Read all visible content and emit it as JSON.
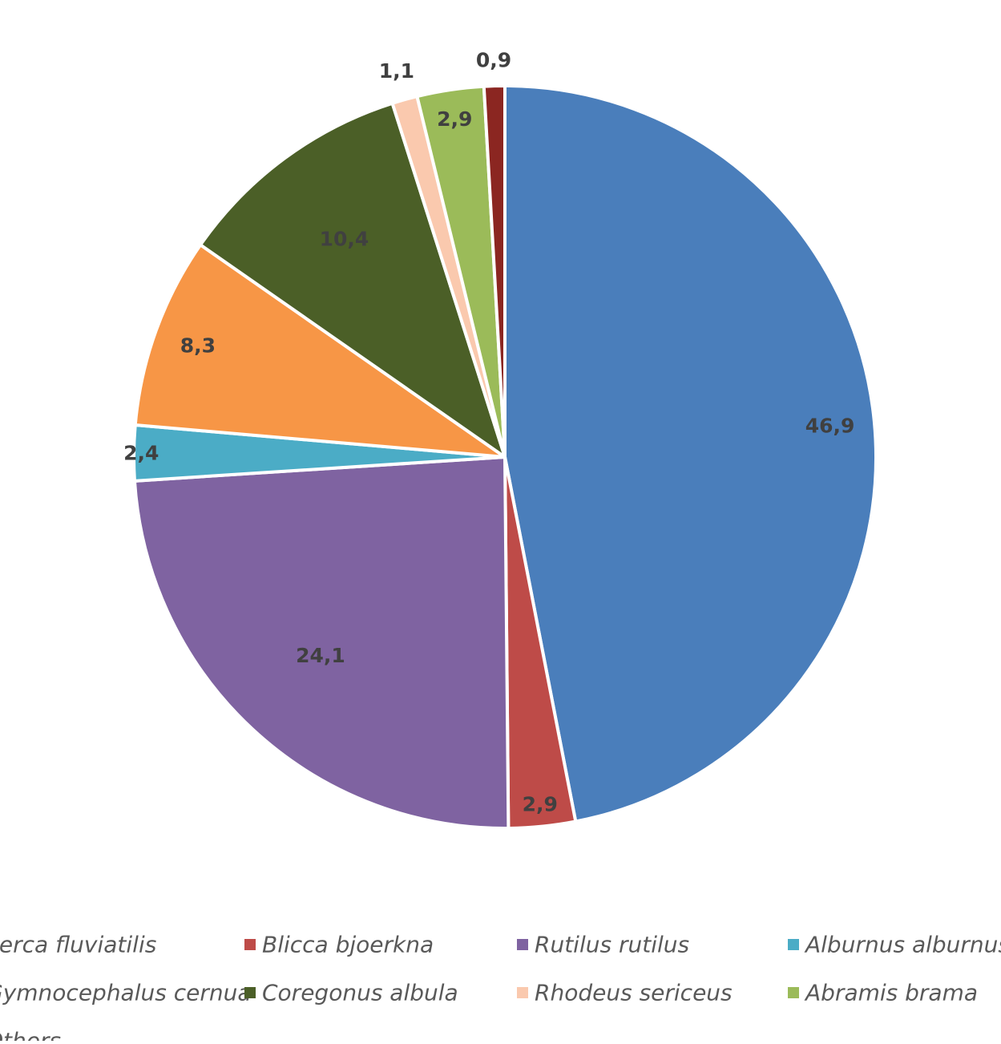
{
  "chart_data": {
    "type": "pie",
    "title": "",
    "series": [
      {
        "name": "Perca fluviatilis",
        "value": 46.9,
        "label": "46,9",
        "color": "#4A7EBB"
      },
      {
        "name": "Blicca bjoerkna",
        "value": 2.9,
        "label": "2,9",
        "color": "#BE4B48"
      },
      {
        "name": "Rutilus rutilus",
        "value": 24.1,
        "label": "24,1",
        "color": "#7F63A1"
      },
      {
        "name": "Alburnus alburnus",
        "value": 2.4,
        "label": "2,4",
        "color": "#4BACC6"
      },
      {
        "name": "Gymnocephalus cernua",
        "value": 8.3,
        "label": "8,3",
        "color": "#F79646"
      },
      {
        "name": "Coregonus albula",
        "value": 10.4,
        "label": "10,4",
        "color": "#4B5F27"
      },
      {
        "name": "Rhodeus sericeus",
        "value": 1.1,
        "label": "1,1",
        "color": "#FAC9AE"
      },
      {
        "name": "Abramis brama",
        "value": 2.9,
        "label": "2,9",
        "color": "#9BBB59"
      },
      {
        "name": "Others",
        "value": 0.9,
        "label": "0,9",
        "color": "#8B2621"
      }
    ],
    "start_position": "top",
    "direction": "clockwise",
    "legend_position": "bottom"
  }
}
